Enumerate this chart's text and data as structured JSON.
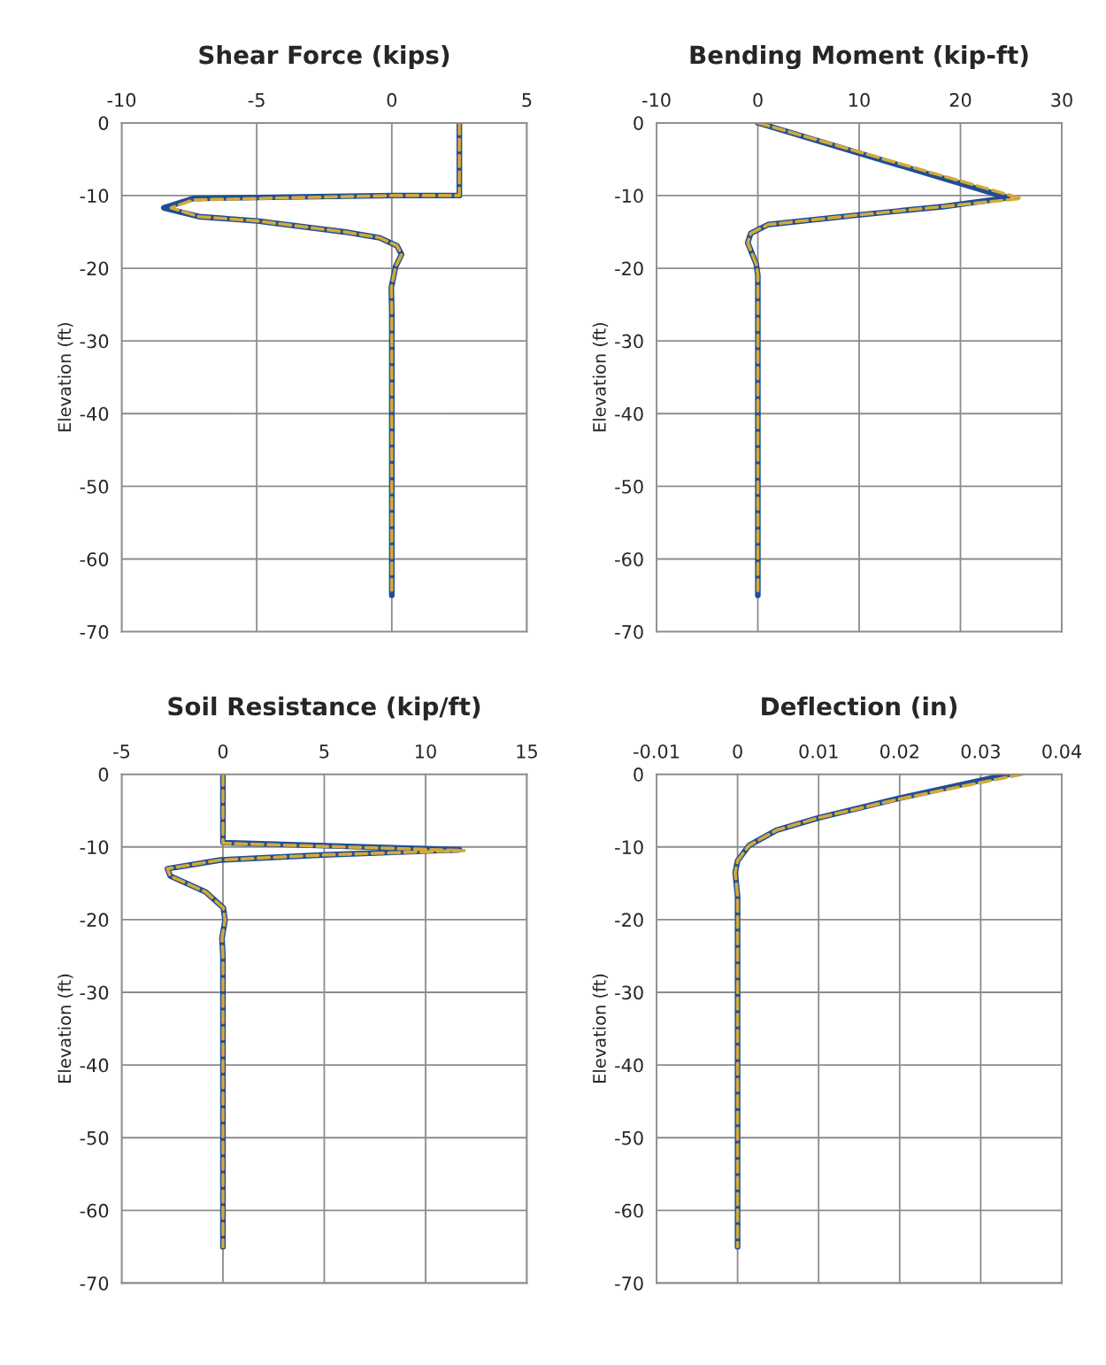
{
  "chart_data": [
    {
      "type": "line",
      "title": "Shear Force (kips)",
      "ylabel": "Elevation (ft)",
      "xlim": [
        -10,
        5
      ],
      "xticks": [
        -10,
        -5,
        0,
        5
      ],
      "ylim": [
        -70,
        0
      ],
      "yticks": [
        0,
        -10,
        -20,
        -30,
        -40,
        -50,
        -60,
        -70
      ],
      "grid": true,
      "series": [
        {
          "color": "#1f4e96",
          "line_style": "solid",
          "x": [
            2.5,
            2.5,
            0.09,
            -7.36,
            -8.44,
            -7.14,
            -4.98,
            -1.75,
            -0.45,
            0.19,
            0.36,
            0.14,
            -0.02,
            0,
            0
          ],
          "values": [
            0,
            -10,
            -10,
            -10.4,
            -11.7,
            -12.9,
            -13.5,
            -15,
            -15.8,
            -16.9,
            -18.1,
            -19.8,
            -22.7,
            -26,
            -65
          ]
        },
        {
          "color": "#d4a939",
          "line_style": "dashed",
          "x": [
            2.5,
            2.5,
            0.09,
            -7.36,
            -8.17,
            -7.14,
            -4.98,
            -1.75,
            -0.45,
            0.19,
            0.36,
            0.14,
            -0.02,
            0,
            0
          ],
          "values": [
            0,
            -10,
            -10,
            -10.6,
            -11.7,
            -12.9,
            -13.5,
            -15,
            -15.8,
            -16.9,
            -18.1,
            -19.8,
            -22.7,
            -26,
            -65
          ]
        }
      ]
    },
    {
      "type": "line",
      "title": "Bending Moment (kip-ft)",
      "ylabel": "Elevation (ft)",
      "xlim": [
        -10,
        30
      ],
      "xticks": [
        -10,
        0,
        10,
        20,
        30
      ],
      "ylim": [
        -70,
        0
      ],
      "yticks": [
        0,
        -10,
        -20,
        -30,
        -40,
        -50,
        -60,
        -70
      ],
      "grid": true,
      "series": [
        {
          "color": "#1f4e96",
          "line_style": "solid",
          "x": [
            0,
            24.7,
            18.4,
            9.7,
            1.0,
            -0.7,
            -1.0,
            -0.16,
            0,
            0
          ],
          "values": [
            0,
            -10.3,
            -11.5,
            -12.7,
            -14,
            -15.2,
            -16.5,
            -19.4,
            -21,
            -65
          ]
        },
        {
          "color": "#d4a939",
          "line_style": "dashed",
          "x": [
            0,
            26.0,
            18.4,
            9.7,
            1.0,
            -0.7,
            -1.0,
            -0.16,
            0,
            0
          ],
          "values": [
            0,
            -10.4,
            -11.5,
            -12.7,
            -14,
            -15.2,
            -16.5,
            -19.4,
            -21,
            -65
          ]
        }
      ]
    },
    {
      "type": "line",
      "title": "Soil Resistance (kip/ft)",
      "ylabel": "Elevation (ft)",
      "xlim": [
        -5,
        15
      ],
      "xticks": [
        -5,
        0,
        5,
        10,
        15
      ],
      "ylim": [
        -70,
        0
      ],
      "yticks": [
        0,
        -10,
        -20,
        -30,
        -40,
        -50,
        -60,
        -70
      ],
      "grid": true,
      "series": [
        {
          "color": "#1f4e96",
          "line_style": "solid",
          "x": [
            0,
            0,
            11.67,
            4.97,
            -0.12,
            -2.74,
            -2.6,
            -0.85,
            0.02,
            0.1,
            -0.05,
            0,
            0
          ],
          "values": [
            0,
            -9.4,
            -10.4,
            -11.1,
            -11.8,
            -13,
            -14,
            -16.2,
            -18.4,
            -20.1,
            -22.6,
            -25,
            -65
          ]
        },
        {
          "color": "#d4a939",
          "line_style": "dashed",
          "x": [
            0,
            0,
            11.9,
            4.97,
            -0.12,
            -2.74,
            -2.6,
            -0.85,
            0.02,
            0.1,
            -0.05,
            0,
            0
          ],
          "values": [
            0,
            -9.5,
            -10.5,
            -11.1,
            -11.8,
            -13,
            -14,
            -16.2,
            -18.4,
            -20.1,
            -22.6,
            -25,
            -65
          ]
        }
      ]
    },
    {
      "type": "line",
      "title": "Deflection (in)",
      "ylabel": "Elevation (ft)",
      "xlim": [
        -0.01,
        0.04
      ],
      "xticks": [
        -0.01,
        0,
        0.01,
        0.02,
        0.03,
        0.04
      ],
      "ylim": [
        -70,
        0
      ],
      "yticks": [
        0,
        -10,
        -20,
        -30,
        -40,
        -50,
        -60,
        -70
      ],
      "grid": true,
      "series": [
        {
          "color": "#1f4e96",
          "line_style": "solid",
          "x": [
            0.0335,
            0.02,
            0.01,
            0.0048,
            0.0014,
            0,
            -0.0003,
            0,
            0
          ],
          "values": [
            0,
            -3.3,
            -6.0,
            -7.7,
            -9.8,
            -11.9,
            -13.5,
            -16.8,
            -65
          ]
        },
        {
          "color": "#d4a939",
          "line_style": "dashed",
          "x": [
            0.0351,
            0.02,
            0.01,
            0.0048,
            0.0014,
            0,
            -0.0003,
            0,
            0
          ],
          "values": [
            0,
            -3.4,
            -6.0,
            -7.7,
            -9.8,
            -11.9,
            -13.5,
            -16.8,
            -65
          ]
        }
      ]
    }
  ]
}
